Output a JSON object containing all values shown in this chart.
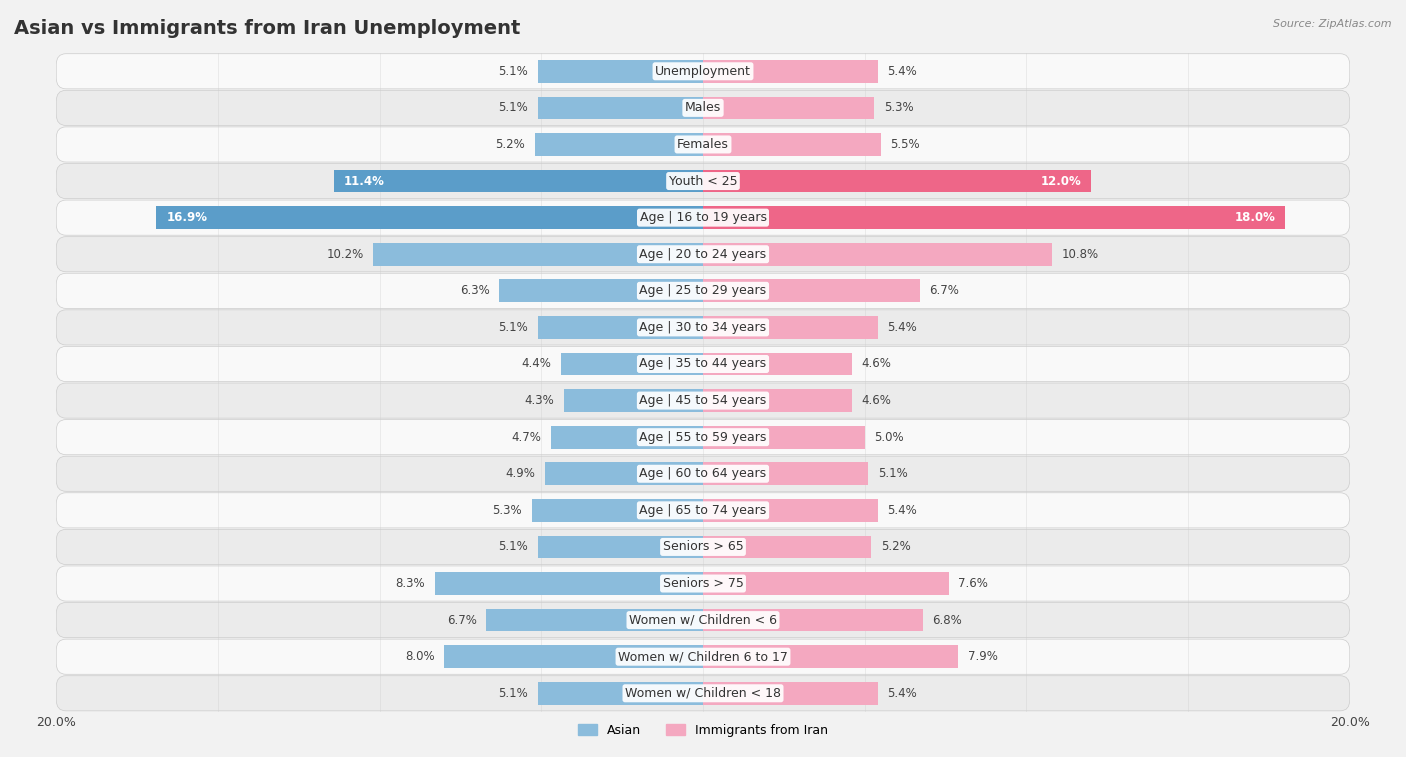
{
  "title": "Asian vs Immigrants from Iran Unemployment",
  "source": "Source: ZipAtlas.com",
  "categories": [
    "Unemployment",
    "Males",
    "Females",
    "Youth < 25",
    "Age | 16 to 19 years",
    "Age | 20 to 24 years",
    "Age | 25 to 29 years",
    "Age | 30 to 34 years",
    "Age | 35 to 44 years",
    "Age | 45 to 54 years",
    "Age | 55 to 59 years",
    "Age | 60 to 64 years",
    "Age | 65 to 74 years",
    "Seniors > 65",
    "Seniors > 75",
    "Women w/ Children < 6",
    "Women w/ Children 6 to 17",
    "Women w/ Children < 18"
  ],
  "asian_values": [
    5.1,
    5.1,
    5.2,
    11.4,
    16.9,
    10.2,
    6.3,
    5.1,
    4.4,
    4.3,
    4.7,
    4.9,
    5.3,
    5.1,
    8.3,
    6.7,
    8.0,
    5.1
  ],
  "iran_values": [
    5.4,
    5.3,
    5.5,
    12.0,
    18.0,
    10.8,
    6.7,
    5.4,
    4.6,
    4.6,
    5.0,
    5.1,
    5.4,
    5.2,
    7.6,
    6.8,
    7.9,
    5.4
  ],
  "asian_color": "#8bbcdc",
  "iran_color": "#f4a8c0",
  "asian_highlight_color": "#5b9dc9",
  "iran_highlight_color": "#ee6688",
  "highlight_rows": [
    3,
    4
  ],
  "axis_max": 20.0,
  "background_color": "#f2f2f2",
  "row_light": "#f9f9f9",
  "row_dark": "#ebebeb",
  "title_fontsize": 14,
  "label_fontsize": 9,
  "value_fontsize": 8.5
}
